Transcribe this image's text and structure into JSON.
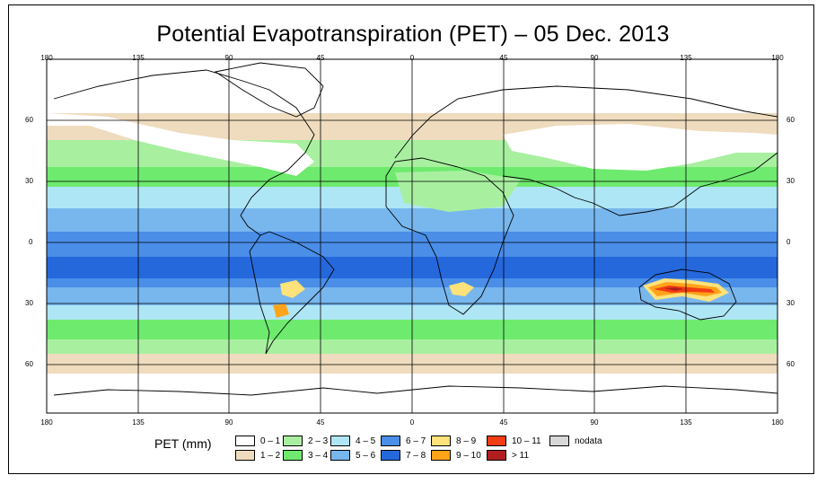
{
  "title": "Potential Evapotranspiration (PET) – 05 Dec. 2013",
  "axes": {
    "lon_labels": [
      "180",
      "135",
      "90",
      "45",
      "0",
      "45",
      "90",
      "135",
      "180"
    ],
    "lat_labels": [
      "60",
      "30",
      "0",
      "30",
      "60"
    ]
  },
  "legend": {
    "title": "PET (mm)",
    "items": [
      {
        "label": "0 – 1",
        "color": "#ffffff"
      },
      {
        "label": "1 – 2",
        "color": "#efdcbe"
      },
      {
        "label": "2 – 3",
        "color": "#a8f0a0"
      },
      {
        "label": "3 – 4",
        "color": "#6eea6e"
      },
      {
        "label": "4 – 5",
        "color": "#aee6f6"
      },
      {
        "label": "5 – 6",
        "color": "#78b6ee"
      },
      {
        "label": "6 – 7",
        "color": "#4a8ee8"
      },
      {
        "label": "7 – 8",
        "color": "#2468dc"
      },
      {
        "label": "8 – 9",
        "color": "#ffe27a"
      },
      {
        "label": "9 – 10",
        "color": "#ffa31a"
      },
      {
        "label": "10 – 11",
        "color": "#f23c12"
      },
      {
        "label": "> 11",
        "color": "#b01e1e"
      },
      {
        "label": "nodata",
        "color": "#d8d8d8"
      }
    ]
  }
}
